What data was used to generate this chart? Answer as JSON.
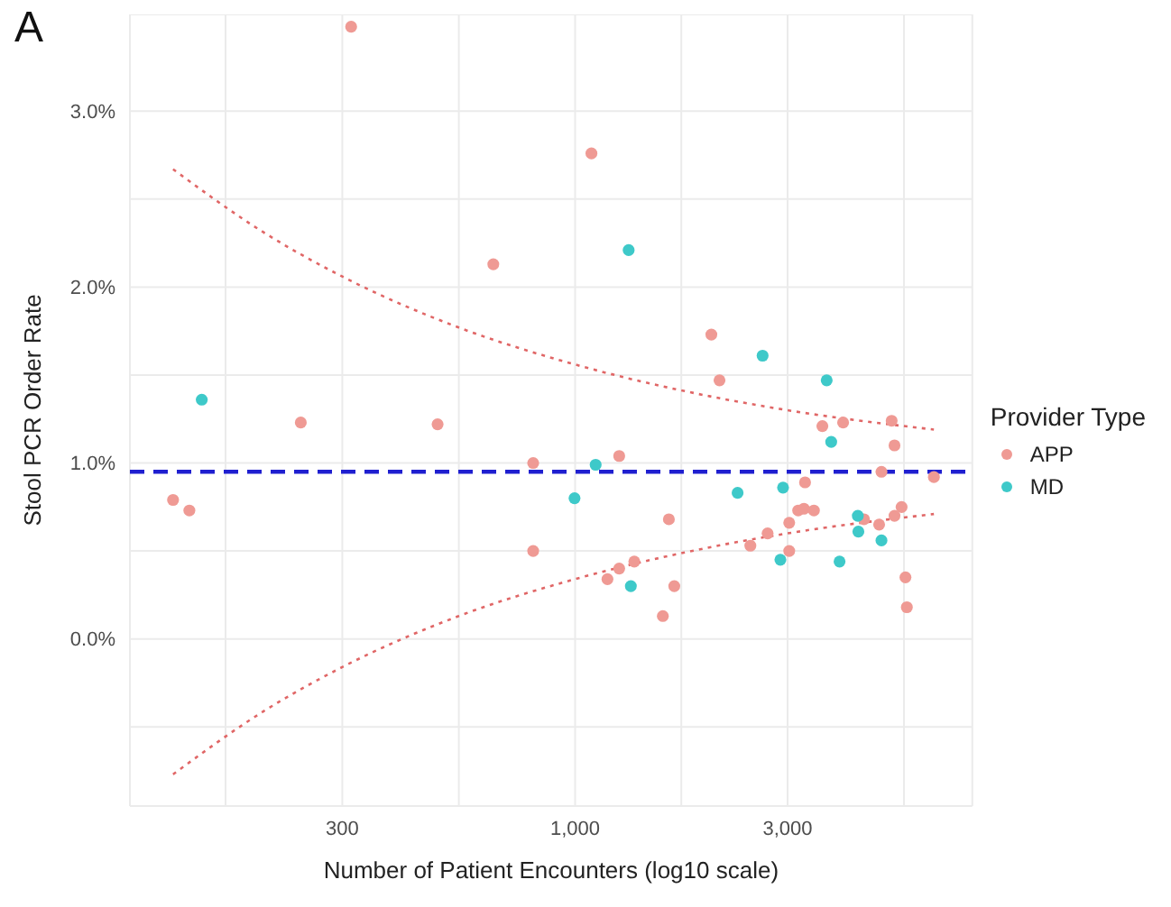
{
  "chart_data": {
    "type": "scatter",
    "title": "A",
    "xlabel": "Number of Patient Encounters (log10 scale)",
    "ylabel": "Stool PCR Order Rate",
    "legend_title": "Provider Type",
    "log": "x",
    "grid": true,
    "legend": "right",
    "marker": "circle",
    "xlim": [
      100,
      7800
    ],
    "xticks": [
      {
        "value": 164,
        "label": null
      },
      {
        "value": 300,
        "label": "300"
      },
      {
        "value": 548,
        "label": null
      },
      {
        "value": 1000,
        "label": "1,000"
      },
      {
        "value": 1732,
        "label": null
      },
      {
        "value": 3000,
        "label": "3,000"
      },
      {
        "value": 5477,
        "label": null
      }
    ],
    "ylim": [
      -0.95,
      3.55
    ],
    "yticks": [
      {
        "value": -0.5,
        "label": null
      },
      {
        "value": 0,
        "label": "0.0%"
      },
      {
        "value": 0.5,
        "label": null
      },
      {
        "value": 1,
        "label": "1.0%"
      },
      {
        "value": 1.5,
        "label": null
      },
      {
        "value": 2,
        "label": "2.0%"
      },
      {
        "value": 2.5,
        "label": null
      },
      {
        "value": 3,
        "label": "3.0%"
      }
    ],
    "ref_lines": [
      {
        "axis": "y",
        "value": 0.95,
        "label": null,
        "color": "#1f1fd0",
        "line_style": "dashed"
      }
    ],
    "series": [
      {
        "name": "APP",
        "color": "#ef9a94",
        "x": [
          314,
          1088,
          655,
          242,
          491,
          2023,
          2110,
          125,
          136,
          805,
          805,
          3592,
          3999,
          5140,
          5216,
          1256,
          4876,
          6395,
          3284,
          3170,
          3265,
          3438,
          3026,
          4456,
          4817,
          5216,
          5411,
          1624,
          2706,
          2475,
          3026,
          1358,
          1256,
          1182,
          1670,
          1574,
          5520,
          5560
        ],
        "values": [
          3.48,
          2.76,
          2.13,
          1.23,
          1.22,
          1.73,
          1.47,
          0.79,
          0.73,
          1.0,
          0.5,
          1.21,
          1.23,
          1.24,
          1.1,
          1.04,
          0.95,
          0.92,
          0.89,
          0.73,
          0.74,
          0.73,
          0.66,
          0.68,
          0.65,
          0.7,
          0.75,
          0.68,
          0.6,
          0.53,
          0.5,
          0.44,
          0.4,
          0.34,
          0.3,
          0.13,
          0.35,
          0.18
        ]
      },
      {
        "name": "MD",
        "color": "#3ec9c9",
        "x": [
          145,
          1319,
          2637,
          3673,
          997,
          1112,
          3760,
          2317,
          2931,
          4315,
          4327,
          4876,
          2891,
          3926,
          1334
        ],
        "values": [
          1.36,
          2.21,
          1.61,
          1.47,
          0.8,
          0.99,
          1.12,
          0.83,
          0.86,
          0.7,
          0.61,
          0.56,
          0.45,
          0.44,
          0.3
        ]
      },
      {
        "type": "line",
        "marker": "none",
        "color": "#e06666",
        "line_style": "dotted",
        "x": [
          125,
          200,
          300,
          548,
          1000,
          2000,
          3000,
          6395
        ],
        "values": [
          2.67,
          2.31,
          2.06,
          1.77,
          1.56,
          1.38,
          1.3,
          1.19
        ]
      },
      {
        "type": "line",
        "marker": "none",
        "color": "#e06666",
        "line_style": "dotted",
        "x": [
          125,
          200,
          300,
          548,
          1000,
          2000,
          3000,
          6395
        ],
        "values": [
          -0.77,
          -0.41,
          -0.16,
          0.13,
          0.34,
          0.52,
          0.6,
          0.71
        ]
      }
    ]
  }
}
